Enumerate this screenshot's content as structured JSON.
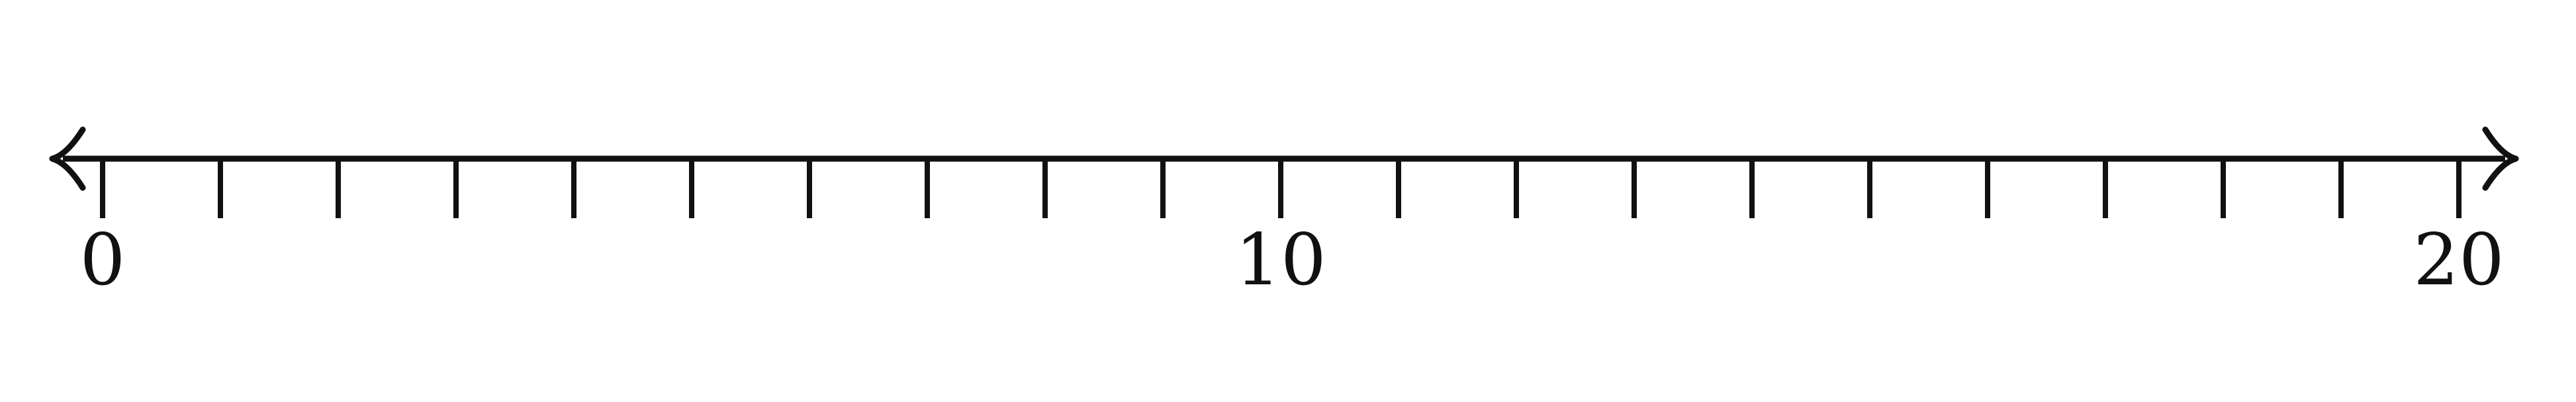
{
  "number_line": {
    "min": 0,
    "max": 20,
    "tick_step": 1,
    "arrows": "both",
    "line_color": "#111111",
    "labels": [
      {
        "value": 0,
        "text": "0"
      },
      {
        "value": 10,
        "text": "10"
      },
      {
        "value": 20,
        "text": "20"
      }
    ]
  }
}
